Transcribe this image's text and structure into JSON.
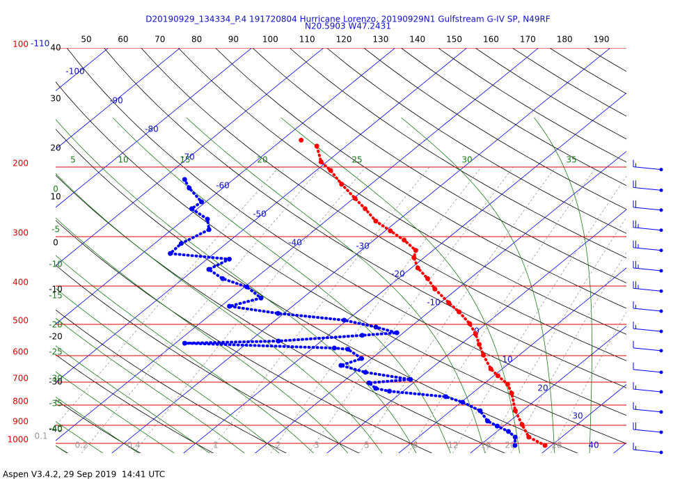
{
  "chart_data": {
    "type": "skew-t",
    "title": "D20190929_134334_P.4 191720804 Hurricane Lorenzo, 20190929N1 Gulfstream G-IV SP, N49RF",
    "subtitle": "N20.5903 W47.2431",
    "ylim": [
      1000,
      100
    ],
    "log_y": true,
    "yticks": [
      100,
      200,
      300,
      400,
      500,
      600,
      700,
      800,
      900,
      1000
    ],
    "isotherms": [
      -110,
      -100,
      -90,
      -80,
      -70,
      -60,
      -50,
      -40,
      -30,
      -20,
      -10,
      0,
      10,
      20,
      30,
      40
    ],
    "dry_adiabats_top": [
      50,
      60,
      70,
      80,
      90,
      100,
      110,
      120,
      130,
      140,
      150,
      160,
      170,
      180,
      190
    ],
    "dry_adiabats_left": [
      40,
      30,
      20,
      10,
      0,
      -10,
      -20,
      -30,
      -40
    ],
    "moist_adiabats_top": [
      5,
      10,
      15,
      20,
      25,
      30,
      35
    ],
    "moist_adiabats_left": [
      0,
      -5,
      -10,
      -15,
      -20,
      -25,
      -30,
      -35,
      -40
    ],
    "mixing_ratios": [
      0.1,
      0.2,
      0.4,
      1,
      2,
      3,
      5,
      8,
      12,
      16,
      20,
      28
    ],
    "temperature": {
      "color": "#ff0000",
      "pressure": [
        1012,
        964,
        896,
        827,
        747,
        709,
        675,
        648,
        598,
        562,
        529,
        498,
        465,
        441,
        407,
        383,
        360,
        339,
        325,
        306,
        290,
        274,
        255,
        240,
        221,
        204,
        194,
        177
      ],
      "values": [
        29.1,
        25.4,
        22.3,
        19.0,
        15.5,
        13.4,
        10.6,
        8.4,
        5.0,
        2.6,
        0.3,
        -2.3,
        -5.8,
        -8.8,
        -13.1,
        -15.9,
        -19.1,
        -21.4,
        -22.4,
        -25.8,
        -29.3,
        -33.0,
        -36.6,
        -39.8,
        -44.1,
        -48.0,
        -50.8,
        -54.1
      ]
    },
    "dewpoint": {
      "color": "#0000ff",
      "pressure": [
        1012,
        964,
        933,
        904,
        878,
        827,
        787,
        762,
        738,
        726,
        703,
        689,
        661,
        635,
        610,
        578,
        574,
        558,
        551,
        533,
        525,
        508,
        488,
        469,
        450,
        429,
        402,
        383,
        363,
        342,
        331,
        312,
        288,
        271,
        255,
        245,
        226,
        215
      ],
      "values": [
        24.9,
        23.5,
        21.6,
        19.1,
        16.9,
        14.1,
        10.2,
        6.9,
        -1.9,
        -4.3,
        -6.2,
        -1.0,
        -8.5,
        -13.1,
        -11.4,
        -14.9,
        -17.0,
        -38.7,
        -26.0,
        -15.3,
        -10.9,
        -14.8,
        -20.4,
        -30.8,
        -38.8,
        -35.8,
        -39.7,
        -44.5,
        -48.0,
        -46.9,
        -56.1,
        -56.3,
        -54.8,
        -56.8,
        -60.8,
        -60.6,
        -64.7,
        -66.8
      ]
    },
    "top_point": {
      "color": "#ff0000",
      "pressure": 171,
      "value": -57.3
    },
    "wind": {
      "pressure": [
        203,
        229,
        257,
        289,
        325,
        366,
        412,
        463,
        521,
        583,
        661,
        741,
        833,
        937,
        1054
      ],
      "speed": [
        15,
        20,
        20,
        25,
        25,
        25,
        25,
        15,
        15,
        10,
        10,
        15,
        15,
        20,
        15
      ]
    }
  },
  "footer": "Aspen V3.4.2, 29 Sep 2019  14:41 UTC"
}
